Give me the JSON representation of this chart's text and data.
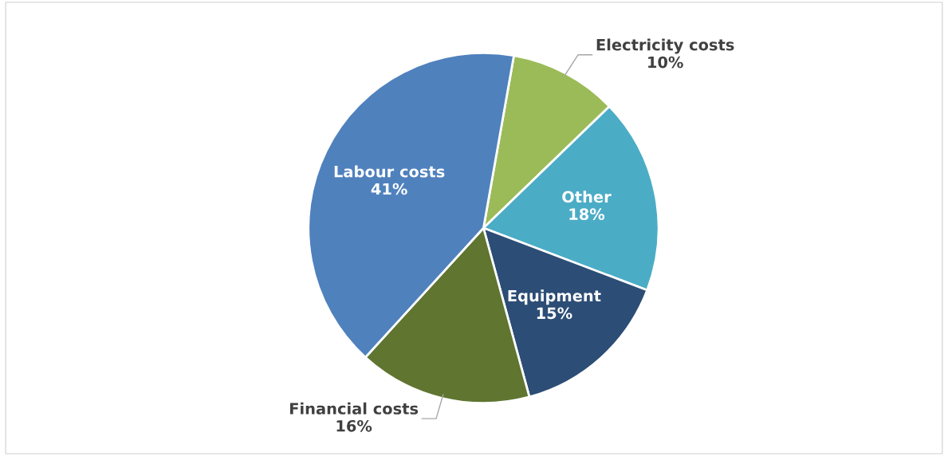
{
  "chart_data": {
    "type": "pie",
    "categories": [
      "Electricity costs",
      "Other",
      "Equipment",
      "Financial costs",
      "Labour costs"
    ],
    "values": [
      10,
      18,
      15,
      16,
      41
    ],
    "colors": [
      "#9bbb59",
      "#4bacc6",
      "#2c4d75",
      "#5f7530",
      "#4f81bd"
    ],
    "value_labels": [
      "10%",
      "18%",
      "15%",
      "16%",
      "41%"
    ],
    "legend": false
  }
}
